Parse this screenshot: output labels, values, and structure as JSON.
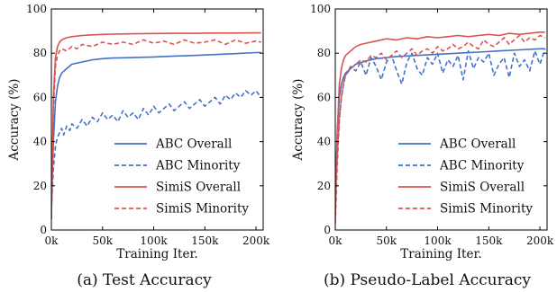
{
  "chart_data": [
    {
      "type": "line",
      "caption": "(a) Test Accuracy",
      "xlabel": "Training Iter.",
      "ylabel": "Accuracy (%)",
      "xlim": [
        0,
        207000
      ],
      "ylim": [
        0,
        100
      ],
      "xticks": [
        0,
        50000,
        100000,
        150000,
        200000
      ],
      "xtick_labels": [
        "0k",
        "50k",
        "100k",
        "150k",
        "200k"
      ],
      "yticks": [
        0,
        20,
        40,
        60,
        80,
        100
      ],
      "ytick_labels": [
        "0",
        "20",
        "40",
        "60",
        "80",
        "100"
      ],
      "grid": false,
      "legend_position": "bottom-right",
      "series": [
        {
          "name": "ABC Overall",
          "color": "#4472c4",
          "dash": "solid",
          "x": [
            0,
            2000,
            4000,
            6000,
            8000,
            10000,
            15000,
            20000,
            30000,
            40000,
            50000,
            60000,
            80000,
            100000,
            120000,
            140000,
            160000,
            180000,
            200000,
            205000
          ],
          "y": [
            12,
            40,
            58,
            65,
            69,
            71,
            73,
            75,
            76,
            77,
            77.5,
            77.8,
            78,
            78.3,
            78.7,
            79,
            79.4,
            79.8,
            80.3,
            80.3
          ]
        },
        {
          "name": "ABC Minority",
          "color": "#4472c4",
          "dash": "dashed",
          "x": [
            0,
            2000,
            4000,
            6000,
            8000,
            10000,
            12000,
            15000,
            18000,
            20000,
            25000,
            30000,
            35000,
            40000,
            45000,
            50000,
            55000,
            60000,
            65000,
            70000,
            75000,
            80000,
            85000,
            90000,
            95000,
            100000,
            105000,
            110000,
            115000,
            120000,
            125000,
            130000,
            135000,
            140000,
            145000,
            150000,
            155000,
            160000,
            165000,
            170000,
            175000,
            180000,
            185000,
            190000,
            195000,
            200000,
            205000
          ],
          "y": [
            10,
            28,
            38,
            42,
            44,
            46,
            43,
            47,
            45,
            48,
            46,
            50,
            47,
            51,
            49,
            53,
            50,
            52,
            49,
            54,
            51,
            53,
            50,
            55,
            52,
            56,
            53,
            55,
            57,
            54,
            56,
            58,
            55,
            57,
            59,
            56,
            58,
            60,
            57,
            61,
            59,
            62,
            60,
            63,
            61,
            63,
            60
          ]
        },
        {
          "name": "SimiS Overall",
          "color": "#d9534f",
          "dash": "solid",
          "x": [
            0,
            2000,
            4000,
            6000,
            8000,
            10000,
            15000,
            20000,
            30000,
            40000,
            50000,
            60000,
            80000,
            100000,
            120000,
            140000,
            160000,
            180000,
            200000,
            205000
          ],
          "y": [
            5,
            60,
            78,
            83,
            85,
            86,
            87,
            87.5,
            88,
            88.3,
            88.5,
            88.6,
            88.8,
            88.9,
            89,
            89,
            89.1,
            89.1,
            89.2,
            89.2
          ]
        },
        {
          "name": "SimiS Minority",
          "color": "#d9534f",
          "dash": "dashed",
          "x": [
            0,
            2000,
            4000,
            6000,
            8000,
            10000,
            15000,
            20000,
            25000,
            30000,
            40000,
            50000,
            60000,
            70000,
            80000,
            90000,
            100000,
            110000,
            120000,
            130000,
            140000,
            150000,
            160000,
            170000,
            180000,
            190000,
            200000,
            205000
          ],
          "y": [
            5,
            55,
            74,
            79,
            81,
            82,
            81,
            83,
            82,
            84,
            83,
            85,
            84,
            85,
            84,
            86,
            84.5,
            85.5,
            84,
            86,
            84.5,
            85,
            86,
            84,
            86,
            84.5,
            85.5,
            85
          ]
        }
      ]
    },
    {
      "type": "line",
      "caption": "(b) Pseudo-Label Accuracy",
      "xlabel": "Training Iter.",
      "ylabel": "Accuracy (%)",
      "xlim": [
        0,
        207000
      ],
      "ylim": [
        0,
        100
      ],
      "xticks": [
        0,
        50000,
        100000,
        150000,
        200000
      ],
      "xtick_labels": [
        "0k",
        "50k",
        "100k",
        "150k",
        "200k"
      ],
      "yticks": [
        0,
        20,
        40,
        60,
        80,
        100
      ],
      "ytick_labels": [
        "0",
        "20",
        "40",
        "60",
        "80",
        "100"
      ],
      "grid": false,
      "legend_position": "bottom-right",
      "series": [
        {
          "name": "ABC Overall",
          "color": "#4472c4",
          "dash": "solid",
          "x": [
            0,
            2000,
            4000,
            6000,
            8000,
            10000,
            15000,
            20000,
            30000,
            40000,
            50000,
            60000,
            80000,
            100000,
            120000,
            140000,
            160000,
            180000,
            200000,
            205000
          ],
          "y": [
            15,
            45,
            60,
            66,
            69,
            71,
            73,
            75,
            76.5,
            77.5,
            78,
            78.5,
            79,
            79.5,
            80,
            80.5,
            81,
            81.5,
            82,
            82
          ]
        },
        {
          "name": "ABC Minority",
          "color": "#4472c4",
          "dash": "dashed",
          "x": [
            0,
            2000,
            4000,
            6000,
            8000,
            10000,
            15000,
            20000,
            25000,
            30000,
            35000,
            40000,
            45000,
            50000,
            55000,
            60000,
            65000,
            70000,
            75000,
            80000,
            85000,
            90000,
            95000,
            100000,
            105000,
            110000,
            115000,
            120000,
            125000,
            130000,
            135000,
            140000,
            145000,
            150000,
            155000,
            160000,
            165000,
            170000,
            175000,
            180000,
            185000,
            190000,
            195000,
            200000,
            205000
          ],
          "y": [
            15,
            35,
            50,
            60,
            66,
            70,
            74,
            72,
            76,
            70,
            78,
            74,
            68,
            76,
            79,
            72,
            66,
            76,
            80,
            73,
            70,
            78,
            75,
            80,
            71,
            77,
            74,
            79,
            68,
            81,
            73,
            78,
            76,
            80,
            70,
            75,
            78,
            69,
            80,
            74,
            77,
            72,
            81,
            75,
            82
          ]
        },
        {
          "name": "SimiS Overall",
          "color": "#d9534f",
          "dash": "solid",
          "x": [
            0,
            2000,
            4000,
            6000,
            8000,
            10000,
            15000,
            20000,
            25000,
            30000,
            40000,
            50000,
            60000,
            70000,
            80000,
            90000,
            100000,
            110000,
            120000,
            130000,
            140000,
            150000,
            160000,
            170000,
            180000,
            190000,
            200000,
            205000
          ],
          "y": [
            5,
            45,
            66,
            73,
            77,
            79,
            81,
            83,
            84,
            84.5,
            85.5,
            86.5,
            86,
            87,
            86.5,
            87.5,
            87,
            87.5,
            88,
            87.5,
            88,
            88.5,
            88,
            89,
            88.5,
            89,
            89.5,
            89.5
          ]
        },
        {
          "name": "SimiS Minority",
          "color": "#d9534f",
          "dash": "dashed",
          "x": [
            0,
            2000,
            4000,
            6000,
            8000,
            10000,
            15000,
            20000,
            25000,
            30000,
            35000,
            40000,
            45000,
            50000,
            55000,
            60000,
            65000,
            70000,
            75000,
            80000,
            85000,
            90000,
            95000,
            100000,
            105000,
            110000,
            115000,
            120000,
            125000,
            130000,
            135000,
            140000,
            145000,
            150000,
            155000,
            160000,
            165000,
            170000,
            175000,
            180000,
            185000,
            190000,
            195000,
            200000,
            205000
          ],
          "y": [
            3,
            30,
            50,
            60,
            66,
            70,
            73,
            75,
            77,
            76,
            79,
            78,
            80,
            77,
            79,
            81,
            78,
            80,
            82,
            79,
            81,
            82,
            80,
            83,
            81,
            82,
            84,
            82,
            83,
            85,
            83,
            82,
            86,
            84,
            83,
            85,
            87,
            84,
            86,
            88,
            85,
            87,
            86,
            88,
            87
          ]
        }
      ]
    }
  ]
}
